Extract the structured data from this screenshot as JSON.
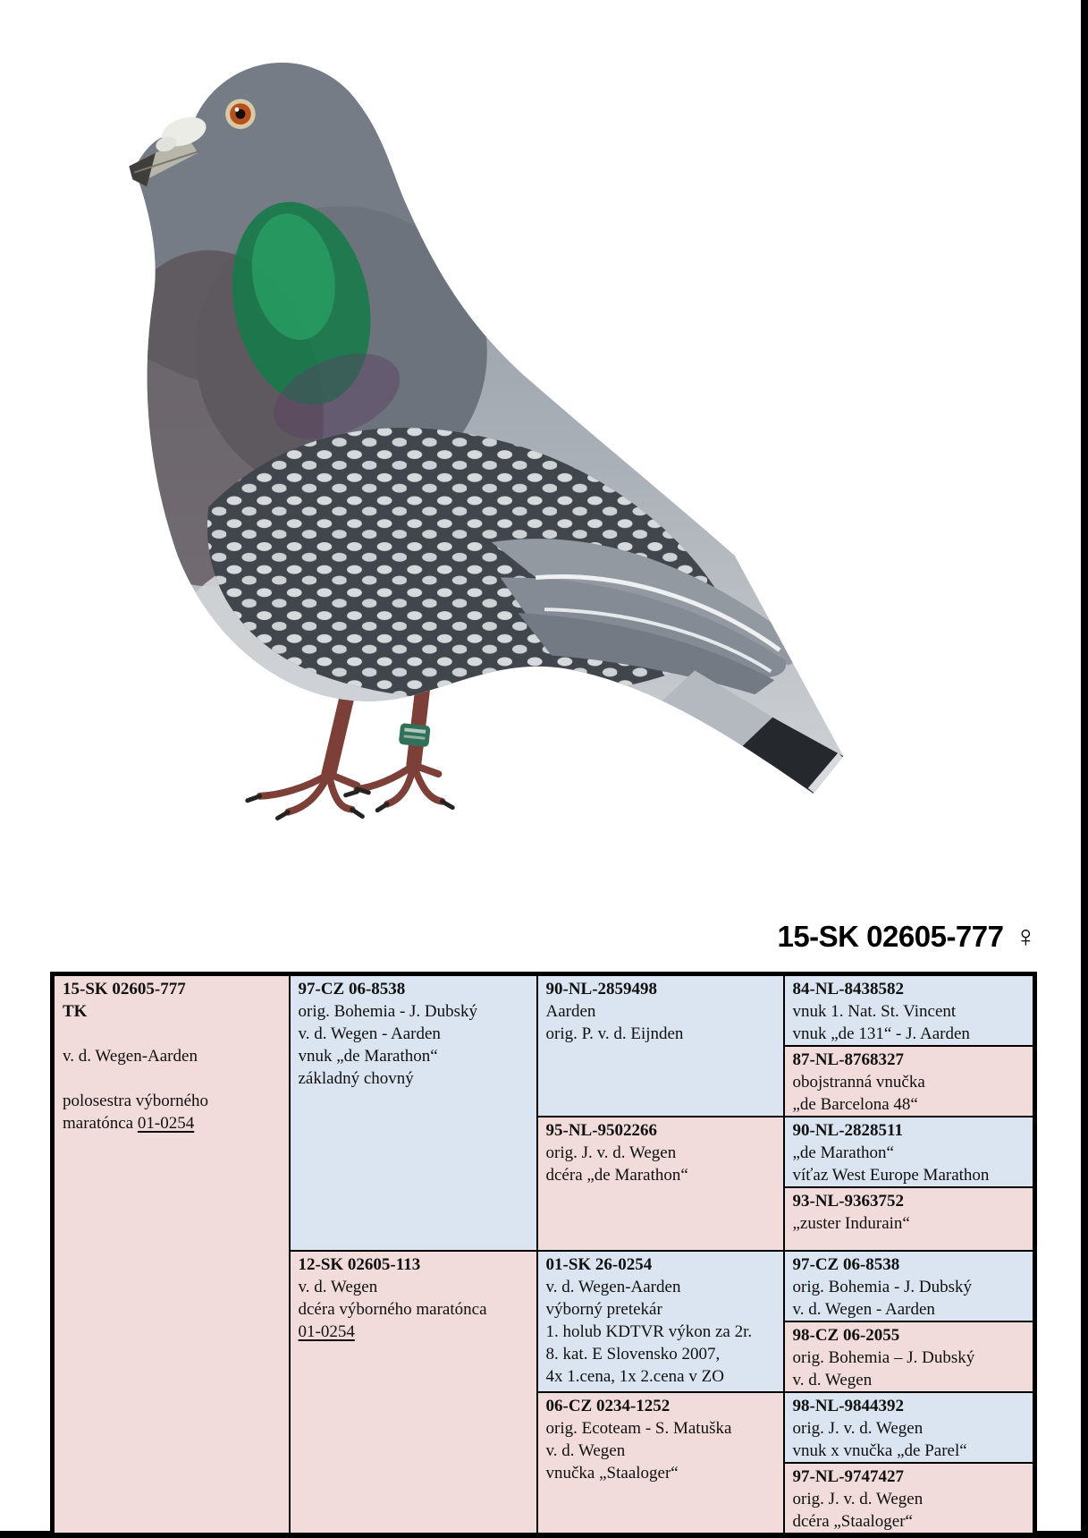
{
  "title": {
    "ring": "15-SK 02605-777",
    "sex_symbol": "♀"
  },
  "colors": {
    "cell_pink": "#f2dcdb",
    "cell_blue": "#dbe5f1",
    "table_border": "#000000",
    "scan_edge": "#000000"
  },
  "pigeon_photo": {
    "alt": "blue check racing pigeon standing, facing left, green leg ring"
  },
  "pedigree": {
    "subject": {
      "ring": "15-SK 02605-777",
      "lines": [
        "**TK**",
        "",
        "v. d. Wegen-Aarden",
        "",
        "polosestra výborného",
        "maratónca __01-0254__"
      ]
    },
    "sire": {
      "ring": "97-CZ 06-8538",
      "lines": [
        "orig. Bohemia - J. Dubský",
        "v. d. Wegen - Aarden",
        "vnuk „de Marathon“",
        "základný chovný"
      ]
    },
    "dam": {
      "ring": "12-SK 02605-113",
      "lines": [
        "v. d. Wegen",
        "dcéra výborného maratónca",
        "__01-0254__"
      ]
    },
    "grandparents": [
      {
        "ring": "90-NL-2859498",
        "lines": [
          "Aarden",
          "orig. P. v. d. Eijnden"
        ]
      },
      {
        "ring": "95-NL-9502266",
        "lines": [
          "orig. J. v. d. Wegen",
          "dcéra „de Marathon“"
        ]
      },
      {
        "ring": "01-SK 26-0254",
        "lines": [
          "v. d. Wegen-Aarden",
          "výborný pretekár",
          "1. holub KDTVR výkon za 2r.",
          "8. kat. E Slovensko 2007,",
          "4x 1.cena, 1x 2.cena v ZO"
        ]
      },
      {
        "ring": "06-CZ 0234-1252",
        "lines": [
          "orig. Ecoteam - S. Matuška",
          "v. d. Wegen",
          "vnučka „Staaloger“"
        ]
      }
    ],
    "great_grandparents": [
      {
        "ring": "84-NL-8438582",
        "lines": [
          "vnuk 1. Nat. St. Vincent",
          "vnuk „de 131“ - J. Aarden"
        ]
      },
      {
        "ring": "87-NL-8768327",
        "lines": [
          "obojstranná vnučka",
          "„de Barcelona 48“"
        ]
      },
      {
        "ring": "90-NL-2828511",
        "lines": [
          "„de Marathon“",
          "víťaz West Europe Marathon"
        ]
      },
      {
        "ring": "93-NL-9363752",
        "lines": [
          "„zuster Indurain“"
        ]
      },
      {
        "ring": "97-CZ 06-8538",
        "lines": [
          "orig. Bohemia - J. Dubský",
          "v. d. Wegen - Aarden"
        ]
      },
      {
        "ring": "98-CZ 06-2055",
        "lines": [
          "orig. Bohemia – J. Dubský",
          "v. d. Wegen"
        ]
      },
      {
        "ring": "98-NL-9844392",
        "lines": [
          "orig. J. v. d. Wegen",
          "vnuk x vnučka „de Parel“"
        ]
      },
      {
        "ring": "97-NL-9747427",
        "lines": [
          "orig. J. v. d. Wegen",
          "dcéra „Staaloger“"
        ]
      }
    ]
  }
}
